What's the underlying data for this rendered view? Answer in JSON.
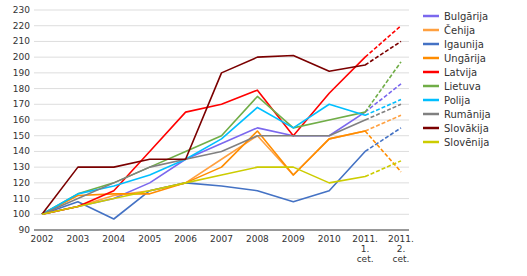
{
  "chart_data": {
    "type": "line",
    "categories": [
      "2002",
      "2003",
      "2004",
      "2005",
      "2006",
      "2007",
      "2008",
      "2009",
      "2010",
      "2011.\n1.\ncet.",
      "2011.\n2.\ncet."
    ],
    "series": [
      {
        "name": "Bulgārija",
        "color": "#7B68EE",
        "values": [
          100,
          105,
          110,
          120,
          135,
          145,
          155,
          150,
          150,
          165,
          183
        ]
      },
      {
        "name": "Čehija",
        "color": "#FFA040",
        "values": [
          100,
          105,
          112,
          115,
          120,
          135,
          150,
          125,
          148,
          153,
          163
        ]
      },
      {
        "name": "Igaunija",
        "color": "#4472C4",
        "values": [
          100,
          108,
          97,
          115,
          120,
          118,
          115,
          108,
          115,
          140,
          155
        ]
      },
      {
        "name": "Ungārija",
        "color": "#FF8C00",
        "values": [
          100,
          112,
          113,
          113,
          120,
          130,
          153,
          125,
          148,
          153,
          127
        ]
      },
      {
        "name": "Latvija",
        "color": "#FF0000",
        "values": [
          100,
          105,
          115,
          140,
          165,
          170,
          179,
          150,
          177,
          200,
          220
        ]
      },
      {
        "name": "Lietuva",
        "color": "#70AD47",
        "values": [
          100,
          113,
          120,
          130,
          140,
          150,
          175,
          155,
          160,
          165,
          197
        ]
      },
      {
        "name": "Polija",
        "color": "#00BFFF",
        "values": [
          100,
          113,
          118,
          125,
          135,
          148,
          168,
          155,
          170,
          163,
          173
        ]
      },
      {
        "name": "Rumānija",
        "color": "#808080",
        "values": [
          100,
          110,
          120,
          130,
          135,
          140,
          150,
          150,
          150,
          160,
          170
        ]
      },
      {
        "name": "Slovākija",
        "color": "#7B0000",
        "values": [
          100,
          130,
          130,
          135,
          135,
          190,
          200,
          201,
          191,
          195,
          210
        ]
      },
      {
        "name": "Slovēnija",
        "color": "#CCCC00",
        "values": [
          100,
          105,
          110,
          115,
          120,
          125,
          130,
          130,
          120,
          124,
          134
        ]
      }
    ],
    "ylim": [
      90,
      230
    ],
    "yticks": [
      90,
      100,
      110,
      120,
      130,
      140,
      150,
      160,
      170,
      180,
      190,
      200,
      210,
      220,
      230
    ],
    "grid": true,
    "legend": "right"
  }
}
